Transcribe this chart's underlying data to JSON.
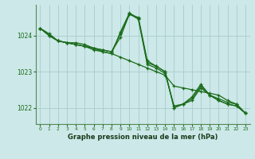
{
  "background_color": "#cce8e8",
  "grid_color": "#aacccc",
  "line_color": "#1a6b1a",
  "xlabel": "Graphe pression niveau de la mer (hPa)",
  "ylim": [
    1021.55,
    1024.85
  ],
  "xlim": [
    -0.5,
    23.5
  ],
  "yticks": [
    1022,
    1023,
    1024
  ],
  "xticks": [
    0,
    1,
    2,
    3,
    4,
    5,
    6,
    7,
    8,
    9,
    10,
    11,
    12,
    13,
    14,
    15,
    16,
    17,
    18,
    19,
    20,
    21,
    22,
    23
  ],
  "lines": [
    {
      "x": [
        0,
        1,
        2,
        3,
        4,
        5,
        6,
        7,
        8,
        9,
        10,
        11,
        12,
        13,
        14,
        15,
        16,
        17,
        18,
        19,
        20,
        21,
        22,
        23
      ],
      "y": [
        1024.2,
        1024.0,
        1023.85,
        1023.8,
        1023.75,
        1023.7,
        1023.6,
        1023.55,
        1023.5,
        1023.4,
        1023.3,
        1023.2,
        1023.1,
        1023.0,
        1022.9,
        1022.6,
        1022.55,
        1022.5,
        1022.45,
        1022.4,
        1022.35,
        1022.2,
        1022.1,
        1021.85
      ]
    },
    {
      "x": [
        0,
        1,
        2,
        3,
        4,
        5,
        6,
        7,
        8,
        9,
        10,
        11,
        12,
        13,
        14,
        15,
        16,
        17,
        18,
        19,
        20,
        21,
        22,
        23
      ],
      "y": [
        1024.2,
        1024.0,
        1023.85,
        1023.8,
        1023.8,
        1023.75,
        1023.65,
        1023.6,
        1023.55,
        1024.05,
        1024.58,
        1024.5,
        1023.3,
        1023.15,
        1023.0,
        1022.0,
        1022.1,
        1022.2,
        1022.55,
        1022.35,
        1022.2,
        1022.1,
        1022.05,
        1021.85
      ]
    },
    {
      "x": [
        0,
        1,
        2,
        3,
        4,
        5,
        6,
        7,
        8,
        9,
        10,
        11,
        12,
        13,
        14,
        15,
        16,
        17,
        18,
        19,
        20,
        21,
        22,
        23
      ],
      "y": [
        1024.2,
        1024.0,
        1023.85,
        1023.8,
        1023.75,
        1023.7,
        1023.65,
        1023.55,
        1023.5,
        1024.1,
        1024.62,
        1024.48,
        1023.25,
        1023.15,
        1023.0,
        1022.0,
        1022.1,
        1022.3,
        1022.65,
        1022.35,
        1022.25,
        1022.15,
        1022.1,
        1021.85
      ]
    },
    {
      "x": [
        0,
        1,
        2,
        3,
        4,
        5,
        6,
        7,
        8,
        9,
        10,
        11,
        12,
        13,
        14,
        15,
        16,
        17,
        18,
        19,
        20,
        21,
        22,
        23
      ],
      "y": [
        1024.2,
        1024.05,
        1023.85,
        1023.8,
        1023.75,
        1023.7,
        1023.65,
        1023.6,
        1023.55,
        1023.95,
        1024.6,
        1024.45,
        1023.2,
        1023.1,
        1022.95,
        1022.05,
        1022.1,
        1022.25,
        1022.6,
        1022.35,
        1022.2,
        1022.1,
        1022.05,
        1021.85
      ]
    }
  ],
  "tick_color": "#1a6b1a",
  "spine_color": "#558855",
  "xlabel_fontsize": 6.0,
  "xlabel_color": "#1a3a1a",
  "ytick_fontsize": 5.5,
  "xtick_fontsize": 4.2
}
